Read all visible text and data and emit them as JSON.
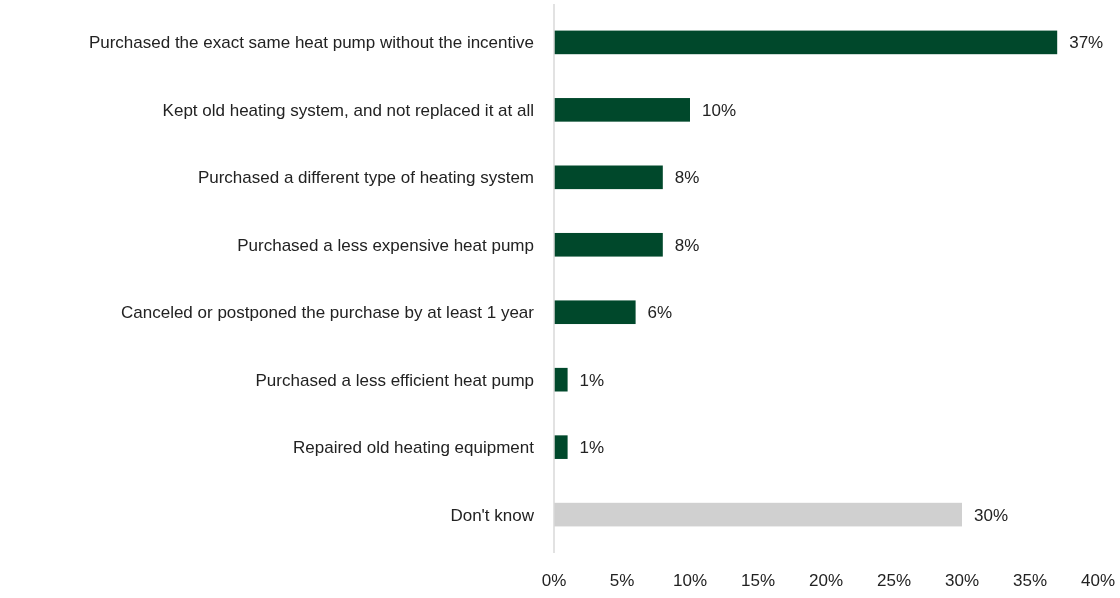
{
  "chart_data": {
    "type": "bar",
    "orientation": "horizontal",
    "categories": [
      "Purchased the exact same heat pump without the incentive",
      "Kept old heating system, and not replaced it at all",
      "Purchased a different type of heating system",
      "Purchased a less expensive heat pump",
      "Canceled or postponed the purchase by at least 1 year",
      "Purchased a less efficient heat pump",
      "Repaired old heating equipment",
      "Don't know"
    ],
    "values": [
      37,
      10,
      8,
      8,
      6,
      1,
      1,
      30
    ],
    "colors": [
      "#00482b",
      "#00482b",
      "#00482b",
      "#00482b",
      "#00482b",
      "#00482b",
      "#00482b",
      "#d0d0d0"
    ],
    "value_labels": [
      "37%",
      "10%",
      "8%",
      "8%",
      "6%",
      "1%",
      "1%",
      "30%"
    ],
    "xlim": [
      0,
      40
    ],
    "xticks": [
      {
        "value": 0,
        "label": "0%"
      },
      {
        "value": 5,
        "label": "5%"
      },
      {
        "value": 10,
        "label": "10%"
      },
      {
        "value": 15,
        "label": "15%"
      },
      {
        "value": 20,
        "label": "20%"
      },
      {
        "value": 25,
        "label": "25%"
      },
      {
        "value": 30,
        "label": "30%"
      },
      {
        "value": 35,
        "label": "35%"
      },
      {
        "value": 40,
        "label": "40%"
      }
    ],
    "grid": false
  }
}
